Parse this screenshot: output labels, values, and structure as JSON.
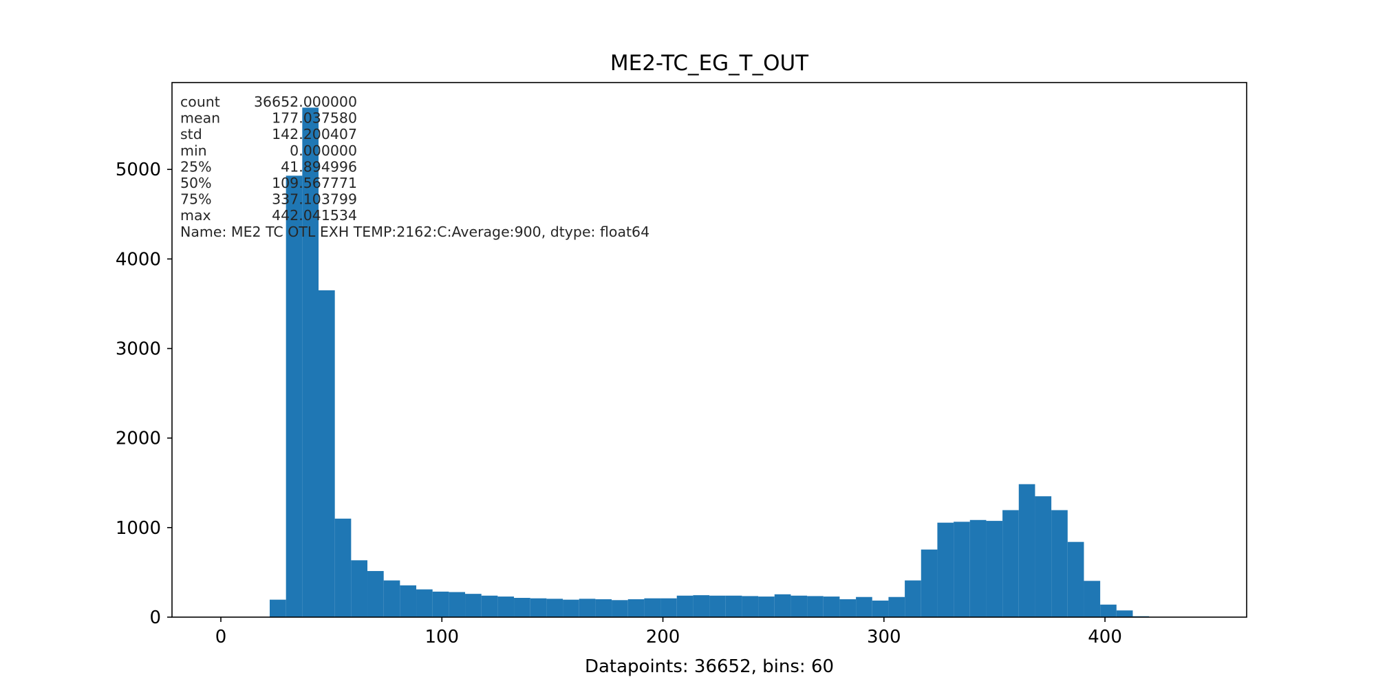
{
  "chart_data": {
    "type": "bar",
    "title": "ME2-TC_EG_T_OUT",
    "xlabel": "Datapoints: 36652, bins: 60",
    "ylabel": "",
    "color": "#1f77b4",
    "xlim": [
      -22.1,
      464.1
    ],
    "ylim": [
      0,
      5970
    ],
    "xticks": [
      0,
      100,
      200,
      300,
      400
    ],
    "yticks": [
      0,
      1000,
      2000,
      3000,
      4000,
      5000
    ],
    "grid": false,
    "bins": {
      "start": 0,
      "width": 7.3674,
      "counts": [
        0,
        0,
        0,
        195,
        4930,
        5690,
        3650,
        1100,
        635,
        515,
        410,
        355,
        310,
        285,
        280,
        260,
        240,
        230,
        215,
        210,
        205,
        195,
        205,
        200,
        190,
        200,
        210,
        210,
        240,
        245,
        240,
        240,
        235,
        230,
        255,
        240,
        235,
        230,
        200,
        225,
        185,
        225,
        410,
        755,
        1055,
        1065,
        1085,
        1075,
        1195,
        1485,
        1350,
        1195,
        840,
        405,
        140,
        75,
        10,
        0,
        0,
        0
      ]
    },
    "stats_lines": [
      {
        "label": "count",
        "value": "36652.000000"
      },
      {
        "label": "mean",
        "value": "177.037580"
      },
      {
        "label": "std",
        "value": "142.200407"
      },
      {
        "label": "min",
        "value": "0.000000"
      },
      {
        "label": "25%",
        "value": "41.894996"
      },
      {
        "label": "50%",
        "value": "109.567771"
      },
      {
        "label": "75%",
        "value": "337.103799"
      },
      {
        "label": "max",
        "value": "442.041534"
      }
    ],
    "stats_footer": "Name: ME2 TC OTL EXH TEMP:2162:C:Average:900, dtype: float64"
  }
}
